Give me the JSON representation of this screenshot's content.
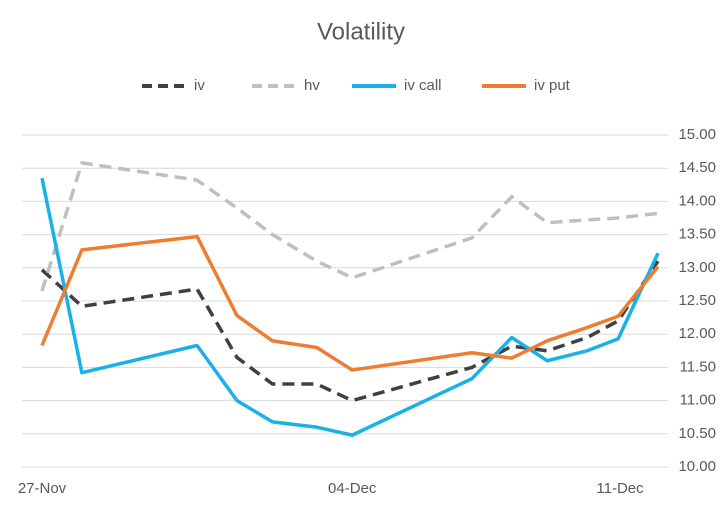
{
  "chart_data": {
    "type": "line",
    "title": "Volatility",
    "x": [
      0,
      0.9,
      3.5,
      4.4,
      5.2,
      6.2,
      7,
      9.7,
      10.6,
      11.4,
      12.3,
      13.0,
      13.9
    ],
    "xlim": [
      0,
      13.9
    ],
    "xticks": [
      {
        "value": 0,
        "label": "27-Nov"
      },
      {
        "value": 7,
        "label": "04-Dec"
      },
      {
        "value": 14,
        "label": "11-Dec"
      }
    ],
    "ylim": [
      10,
      15
    ],
    "yticks": [
      {
        "value": 10,
        "label": "10.00"
      },
      {
        "value": 10.5,
        "label": "10.50"
      },
      {
        "value": 11,
        "label": "11.00"
      },
      {
        "value": 11.5,
        "label": "11.50"
      },
      {
        "value": 12,
        "label": "12.00"
      },
      {
        "value": 12.5,
        "label": "12.50"
      },
      {
        "value": 13,
        "label": "13.00"
      },
      {
        "value": 13.5,
        "label": "13.50"
      },
      {
        "value": 14,
        "label": "14.00"
      },
      {
        "value": 14.5,
        "label": "14.50"
      },
      {
        "value": 15,
        "label": "15.00"
      }
    ],
    "grid": true,
    "legend": "top",
    "series": [
      {
        "name": "iv",
        "color": "#404040",
        "dash": true,
        "values": [
          12.97,
          12.42,
          12.68,
          11.65,
          11.25,
          11.25,
          11.0,
          11.5,
          11.82,
          11.75,
          11.95,
          12.2,
          13.1
        ]
      },
      {
        "name": "hv",
        "color": "#bfbfbf",
        "dash": true,
        "values": [
          12.65,
          14.58,
          14.32,
          13.9,
          13.5,
          13.1,
          12.85,
          13.45,
          14.07,
          13.68,
          13.72,
          13.75,
          13.82
        ]
      },
      {
        "name": "iv call",
        "color": "#1ab0e8",
        "dash": false,
        "values": [
          14.35,
          11.42,
          11.83,
          11.0,
          10.68,
          10.6,
          10.48,
          11.33,
          11.95,
          11.6,
          11.75,
          11.93,
          13.22
        ]
      },
      {
        "name": "iv put",
        "color": "#ed7d31",
        "dash": false,
        "values": [
          11.83,
          13.27,
          13.47,
          12.28,
          11.9,
          11.8,
          11.46,
          11.72,
          11.64,
          11.9,
          12.1,
          12.27,
          13.02
        ]
      }
    ]
  }
}
